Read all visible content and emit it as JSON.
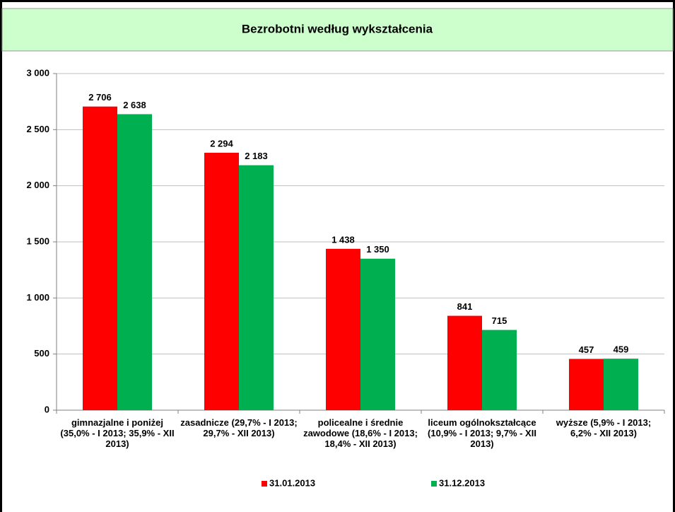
{
  "chart_data": {
    "type": "bar",
    "title": "Bezrobotni według wykształcenia",
    "categories": [
      "gimnazjalne i poniżej (35,0% - I 2013; 35,9% - XII 2013)",
      "zasadnicze (29,7% - I 2013; 29,7% - XII 2013)",
      "policealne i średnie zawodowe (18,6% - I 2013; 18,4% - XII 2013)",
      "liceum ogólnokształcące (10,9% - I 2013; 9,7% - XII 2013)",
      "wyższe (5,9% - I 2013; 6,2% - XII 2013)"
    ],
    "series": [
      {
        "name": "31.01.2013",
        "color": "#ff0000",
        "values": [
          2706,
          2294,
          1438,
          841,
          457
        ],
        "value_labels": [
          "2 706",
          "2 294",
          "1 438",
          "841",
          "457"
        ]
      },
      {
        "name": "31.12.2013",
        "color": "#00b050",
        "values": [
          2638,
          2183,
          1350,
          715,
          459
        ],
        "value_labels": [
          "2 638",
          "2 183",
          "1 350",
          "715",
          "459"
        ]
      }
    ],
    "ylim": [
      0,
      3000
    ],
    "yticks": [
      0,
      500,
      {
        "value": 1000,
        "label": "1 000"
      },
      {
        "value": 1500,
        "label": "1 500"
      },
      {
        "value": 2000,
        "label": "2 000"
      },
      {
        "value": 2500,
        "label": "2 500"
      },
      {
        "value": 3000,
        "label": "3 000"
      }
    ],
    "grid": true,
    "legend": "bottom"
  }
}
